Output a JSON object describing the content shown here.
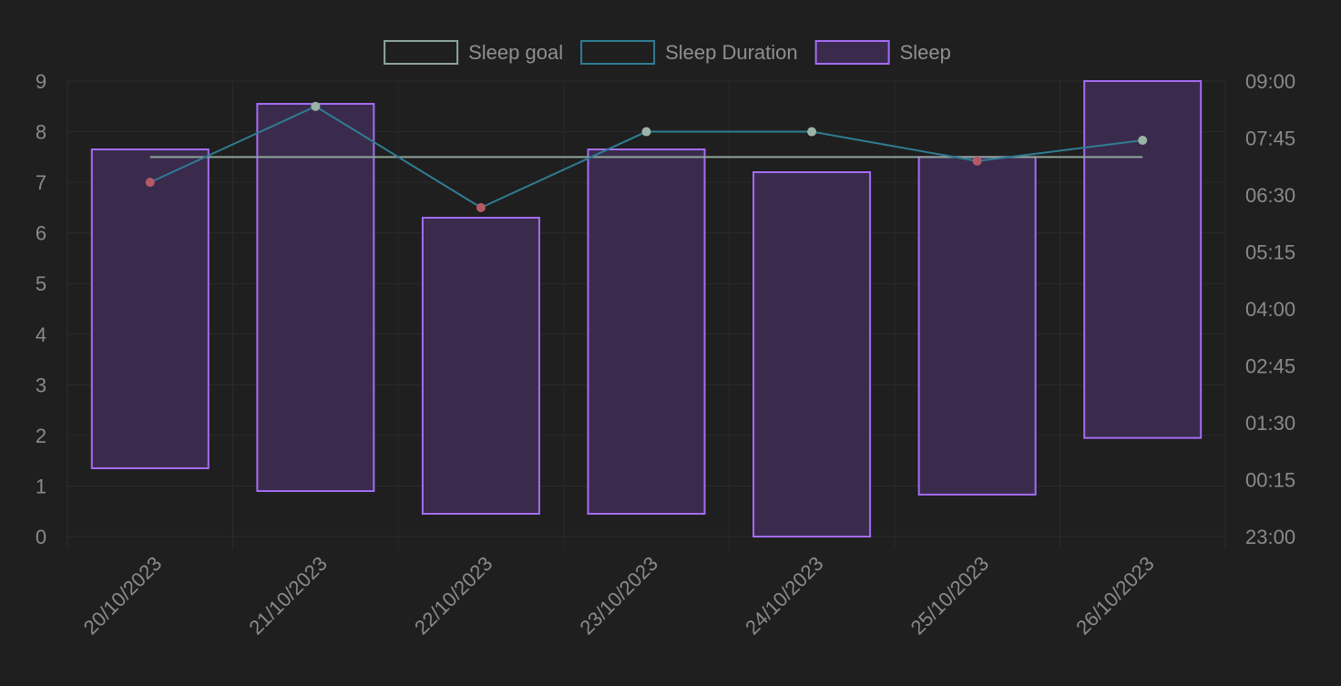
{
  "colors": {
    "background": "#1f1f1f",
    "grid": "#2b2b2b",
    "tick_text": "#8a8a8a",
    "goal_line": "#8ea59a",
    "duration_line": "#2f7d93",
    "bar_fill": "#3a2b4d",
    "bar_border": "#a46df2",
    "point_good": "#9bb3a6",
    "point_bad": "#b55a64"
  },
  "legend": [
    {
      "label": "Sleep goal",
      "stroke": "#8ea59a",
      "fill": "#1f1f1f"
    },
    {
      "label": "Sleep Duration",
      "stroke": "#2f7d93",
      "fill": "#1f1f1f"
    },
    {
      "label": "Sleep",
      "stroke": "#a46df2",
      "fill": "#3a2b4d"
    }
  ],
  "chart_data": {
    "type": "bar",
    "categories": [
      "20/10/2023",
      "21/10/2023",
      "22/10/2023",
      "23/10/2023",
      "24/10/2023",
      "25/10/2023",
      "26/10/2023"
    ],
    "left_axis": {
      "ylim": [
        0,
        9
      ],
      "ticks": [
        "0",
        "1",
        "2",
        "3",
        "4",
        "5",
        "6",
        "7",
        "8",
        "9"
      ]
    },
    "right_axis": {
      "ticks": [
        "23:00",
        "00:15",
        "01:30",
        "02:45",
        "04:00",
        "05:15",
        "06:30",
        "07:45",
        "09:00"
      ]
    },
    "series": [
      {
        "name": "Sleep",
        "type": "floating-bar",
        "ranges": [
          [
            1.35,
            7.65
          ],
          [
            0.9,
            8.55
          ],
          [
            0.45,
            6.3
          ],
          [
            0.45,
            7.65
          ],
          [
            0.0,
            7.2
          ],
          [
            0.83,
            7.5
          ],
          [
            1.95,
            9.0
          ]
        ]
      },
      {
        "name": "Sleep Duration",
        "type": "line",
        "values": [
          7.0,
          8.5,
          6.5,
          8.0,
          8.0,
          7.42,
          7.83
        ]
      },
      {
        "name": "Sleep goal",
        "type": "line",
        "values": [
          7.5,
          7.5,
          7.5,
          7.5,
          7.5,
          7.5,
          7.5
        ]
      }
    ],
    "grid": true,
    "legend_position": "top-center"
  }
}
